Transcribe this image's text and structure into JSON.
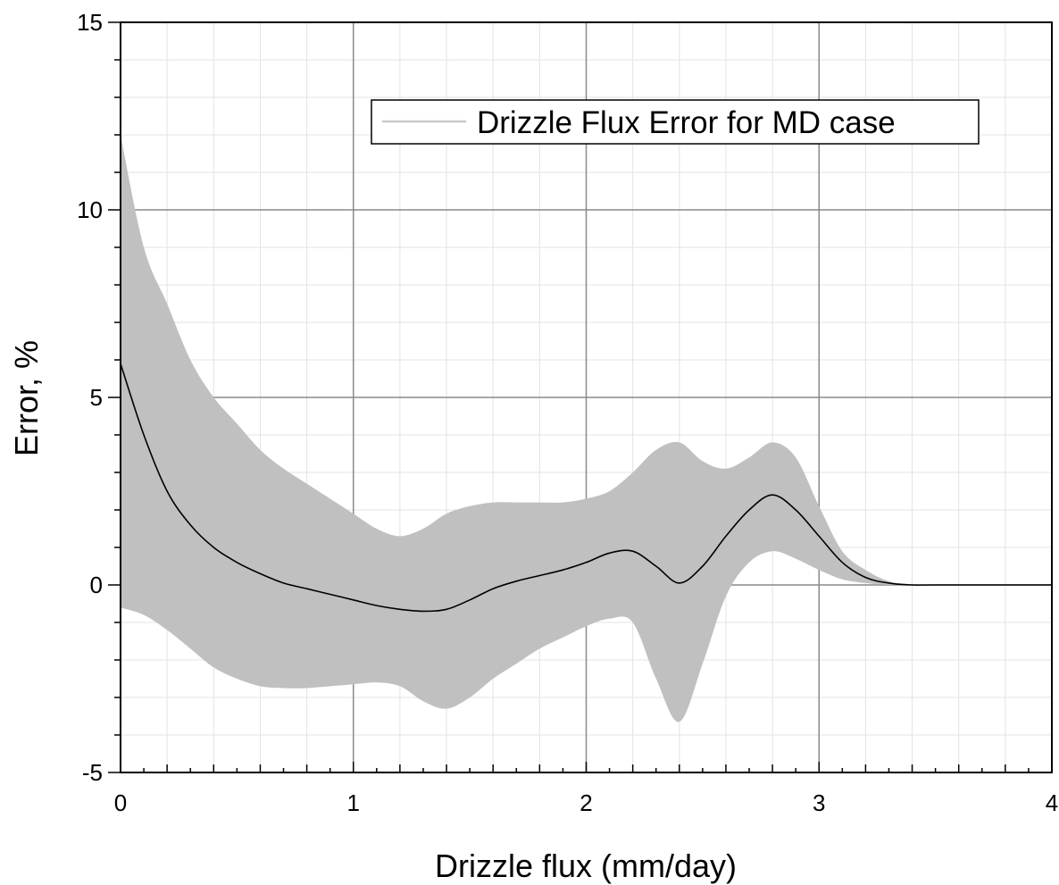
{
  "chart_data": {
    "type": "area",
    "title": "",
    "xlabel": "Drizzle flux (mm/day)",
    "ylabel": "Error, %",
    "xlim": [
      0,
      4
    ],
    "ylim": [
      -5,
      15
    ],
    "x_ticks": [
      "0",
      "1",
      "2",
      "3",
      "4"
    ],
    "y_ticks": [
      "-5",
      "0",
      "5",
      "10",
      "15"
    ],
    "grid": true,
    "legend": {
      "position": "top-right",
      "entries": [
        "Drizzle Flux Error for MD case"
      ]
    },
    "colors": {
      "band": "#c0c0c0",
      "line": "#000000",
      "legend_line": "#c8c8c8"
    },
    "series": [
      {
        "name": "Drizzle Flux Error for MD case",
        "x": [
          0,
          0.1,
          0.2,
          0.3,
          0.4,
          0.5,
          0.6,
          0.7,
          0.8,
          0.9,
          1.0,
          1.1,
          1.2,
          1.3,
          1.4,
          1.5,
          1.6,
          1.7,
          1.8,
          1.9,
          2.0,
          2.1,
          2.2,
          2.3,
          2.4,
          2.5,
          2.6,
          2.7,
          2.8,
          2.9,
          3.0,
          3.1,
          3.2,
          3.3,
          3.4,
          3.5,
          4.0
        ],
        "mean": [
          5.9,
          4.0,
          2.5,
          1.6,
          1.0,
          0.6,
          0.3,
          0.05,
          -0.1,
          -0.25,
          -0.4,
          -0.55,
          -0.65,
          -0.7,
          -0.65,
          -0.4,
          -0.1,
          0.1,
          0.25,
          0.4,
          0.6,
          0.85,
          0.9,
          0.5,
          0.05,
          0.5,
          1.3,
          2.0,
          2.4,
          2.0,
          1.3,
          0.6,
          0.2,
          0.05,
          0.0,
          0.0,
          0.0
        ],
        "upper": [
          12.0,
          9.0,
          7.5,
          6.0,
          5.0,
          4.3,
          3.6,
          3.1,
          2.7,
          2.3,
          1.9,
          1.5,
          1.3,
          1.5,
          1.9,
          2.1,
          2.2,
          2.2,
          2.2,
          2.2,
          2.3,
          2.5,
          3.0,
          3.6,
          3.8,
          3.3,
          3.1,
          3.4,
          3.8,
          3.4,
          2.1,
          0.9,
          0.4,
          0.1,
          0.0,
          0.0,
          0.0
        ],
        "lower": [
          -0.6,
          -0.8,
          -1.2,
          -1.7,
          -2.2,
          -2.5,
          -2.7,
          -2.75,
          -2.75,
          -2.7,
          -2.65,
          -2.6,
          -2.7,
          -3.1,
          -3.3,
          -3.0,
          -2.5,
          -2.1,
          -1.7,
          -1.4,
          -1.1,
          -0.9,
          -1.0,
          -2.5,
          -3.65,
          -2.1,
          -0.3,
          0.6,
          0.9,
          0.7,
          0.4,
          0.15,
          0.05,
          0.0,
          0.0,
          0.0,
          0.0
        ]
      }
    ]
  }
}
